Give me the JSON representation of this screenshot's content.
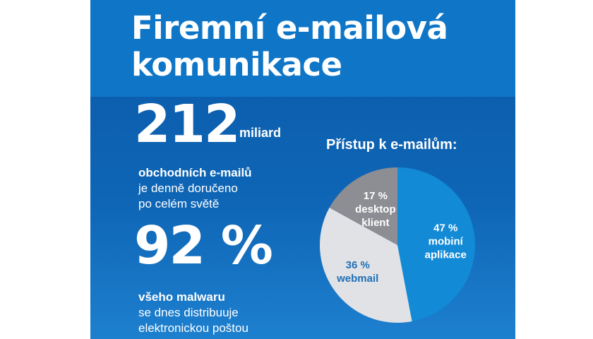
{
  "title": {
    "line1": "Firemní e-mailová",
    "line2": "komunikace"
  },
  "stat1": {
    "value": "212",
    "unit": "miliard",
    "bold_text": "obchodních e-mailů",
    "line2": "je denně doručeno",
    "line3": "po celém světě"
  },
  "stat2": {
    "value": "92 %",
    "bold_text": "všeho malwaru",
    "line2": "se dnes distribuuje",
    "line3": "elektronickou poštou"
  },
  "colors": {
    "title_band": "#0f76c7",
    "body_band": "#0c5fae",
    "slice_mobile": "#138ad6",
    "slice_webmail": "#e1e2e5",
    "slice_desktop": "#8c8e94"
  },
  "chart_data": {
    "type": "pie",
    "title": "Přístup k e-mailům:",
    "slices": [
      {
        "label_lines": [
          "47 %",
          "mobiní",
          "aplikace"
        ],
        "value": 47,
        "color": "#138ad6",
        "text_color": "#ffffff"
      },
      {
        "label_lines": [
          "36 %",
          "webmail"
        ],
        "value": 36,
        "color": "#e1e2e5",
        "text_color": "#1f6fb8"
      },
      {
        "label_lines": [
          "17 %",
          "desktop",
          "klient"
        ],
        "value": 17,
        "color": "#8c8e94",
        "text_color": "#ffffff"
      }
    ]
  }
}
